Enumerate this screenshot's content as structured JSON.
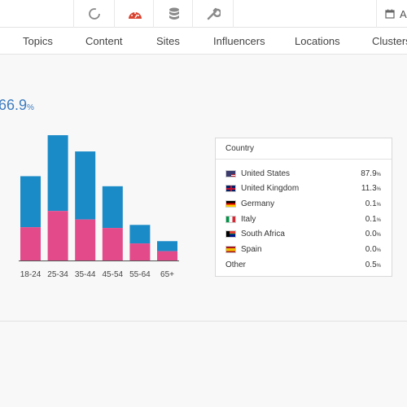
{
  "toolbar": {
    "icons": [
      "refresh-icon",
      "dashboard-icon",
      "database-icon",
      "wrench-icon",
      "calendar-icon"
    ],
    "date_label": "A"
  },
  "tabs": [
    {
      "label": "Topics"
    },
    {
      "label": "Content"
    },
    {
      "label": "Sites"
    },
    {
      "label": "Influencers"
    },
    {
      "label": "Locations"
    },
    {
      "label": "Clusters"
    }
  ],
  "summary": {
    "value": "66.9",
    "unit": "%"
  },
  "colors": {
    "blue": "#1b8bc7",
    "pink": "#e24a8a",
    "accent": "#3d7cc0"
  },
  "chart_data": {
    "type": "bar",
    "stacked": true,
    "categories": [
      "18-24",
      "25-34",
      "35-44",
      "45-54",
      "55-64",
      "65+"
    ],
    "series": [
      {
        "values": [
          43,
          64,
          53,
          42,
          22,
          12
        ]
      },
      {
        "values": [
          66,
          98,
          88,
          54,
          24,
          13
        ]
      }
    ],
    "ylim": [
      0,
      160
    ]
  },
  "country": {
    "header": "Country",
    "rows": [
      {
        "name": "United States",
        "value": "87.9",
        "unit": "%",
        "flag": "us-flag-icon"
      },
      {
        "name": "United Kingdom",
        "value": "11.3",
        "unit": "%",
        "flag": "uk-flag-icon"
      },
      {
        "name": "Germany",
        "value": "0.1",
        "unit": "%",
        "flag": "germany-flag-icon"
      },
      {
        "name": "Italy",
        "value": "0.1",
        "unit": "%",
        "flag": "italy-flag-icon"
      },
      {
        "name": "South Africa",
        "value": "0.0",
        "unit": "%",
        "flag": "south-africa-flag-icon"
      },
      {
        "name": "Spain",
        "value": "0.0",
        "unit": "%",
        "flag": "spain-flag-icon"
      },
      {
        "name": "Other",
        "value": "0.5",
        "unit": "%",
        "flag": ""
      }
    ]
  }
}
